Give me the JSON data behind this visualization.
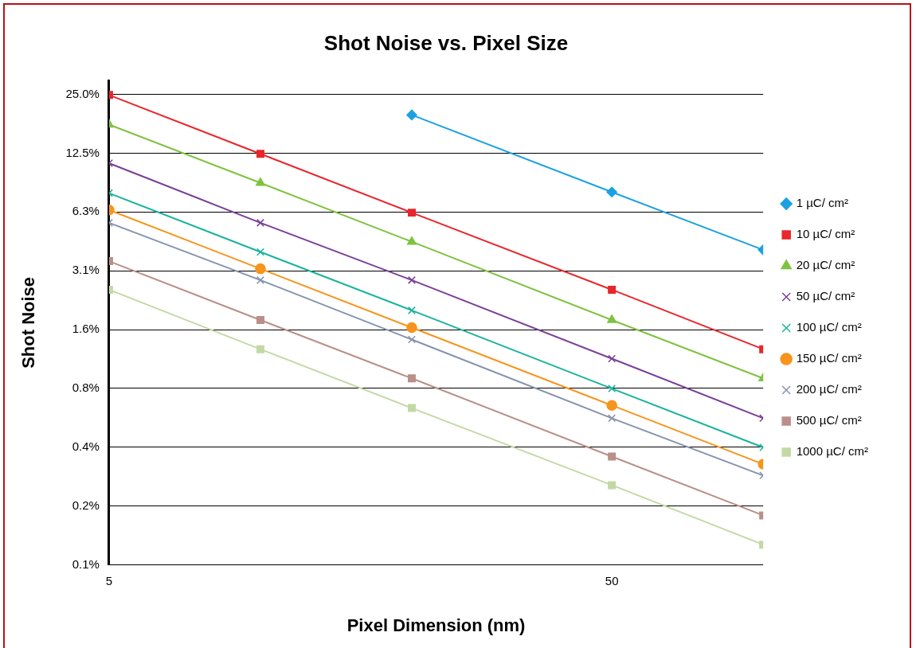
{
  "chart_data": {
    "type": "line",
    "title": "Shot Noise vs. Pixel Size",
    "xlabel": "Pixel Dimension (nm)",
    "ylabel": "Shot Noise",
    "log": "xy",
    "grid": "y",
    "legend": "right",
    "x": [
      5,
      10,
      20,
      50,
      100
    ],
    "xlim": [
      5,
      100
    ],
    "xticks": [
      5,
      50
    ],
    "ylim": [
      0.09765625,
      29.4
    ],
    "yticks": [
      {
        "value": 0.09765625,
        "label": "0.1%"
      },
      {
        "value": 0.1953125,
        "label": "0.2%"
      },
      {
        "value": 0.390625,
        "label": "0.4%"
      },
      {
        "value": 0.78125,
        "label": "0.8%"
      },
      {
        "value": 1.5625,
        "label": "1.6%"
      },
      {
        "value": 3.125,
        "label": "3.1%"
      },
      {
        "value": 6.25,
        "label": "6.3%"
      },
      {
        "value": 12.5,
        "label": "12.5%"
      },
      {
        "value": 25,
        "label": "25.0%"
      }
    ],
    "series": [
      {
        "name": "1 µC/ cm²",
        "color": "#1ba1e2",
        "marker": "diamond",
        "values": [
          null,
          null,
          19.6,
          7.9,
          4.0
        ]
      },
      {
        "name": "10 µC/ cm²",
        "color": "#e8262b",
        "marker": "square",
        "values": [
          24.8,
          12.4,
          6.2,
          2.5,
          1.24
        ]
      },
      {
        "name": "20 µC/ cm²",
        "color": "#7fc241",
        "marker": "triangle",
        "values": [
          17.5,
          8.8,
          4.4,
          1.75,
          0.88
        ]
      },
      {
        "name": "50 µC/ cm²",
        "color": "#7b3f97",
        "marker": "cross",
        "values": [
          11.1,
          5.5,
          2.8,
          1.11,
          0.55
        ]
      },
      {
        "name": "100 µC/ cm²",
        "color": "#1ab39b",
        "marker": "cross",
        "values": [
          7.8,
          3.9,
          1.96,
          0.78,
          0.39
        ]
      },
      {
        "name": "150 µC/ cm²",
        "color": "#f7941d",
        "marker": "circle",
        "values": [
          6.4,
          3.2,
          1.6,
          0.64,
          0.32
        ]
      },
      {
        "name": "200 µC/ cm²",
        "color": "#8593ad",
        "marker": "cross",
        "values": [
          5.5,
          2.8,
          1.39,
          0.55,
          0.28
        ]
      },
      {
        "name": "500 µC/ cm²",
        "color": "#b98f88",
        "marker": "square",
        "values": [
          3.5,
          1.75,
          0.88,
          0.35,
          0.175
        ]
      },
      {
        "name": "1000 µC/ cm²",
        "color": "#c3d9a5",
        "marker": "square",
        "values": [
          2.5,
          1.24,
          0.62,
          0.25,
          0.124
        ]
      }
    ]
  }
}
